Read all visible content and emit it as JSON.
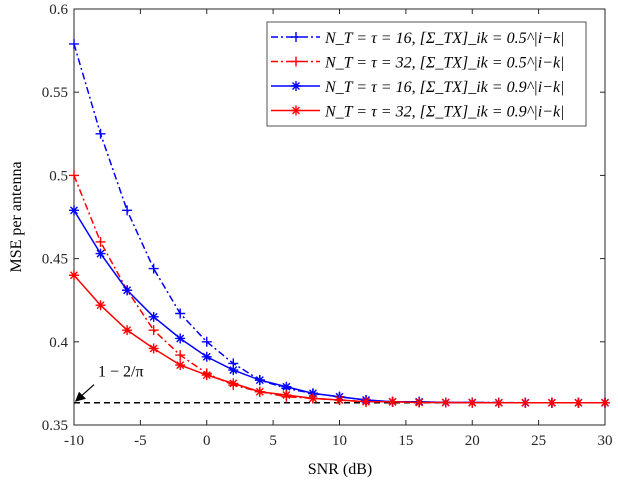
{
  "chart_data": {
    "type": "line",
    "title": "",
    "xlabel": "SNR (dB)",
    "ylabel": "MSE per antenna",
    "xlim": [
      -10,
      30
    ],
    "ylim": [
      0.35,
      0.6
    ],
    "xticks": [
      -10,
      -5,
      0,
      5,
      10,
      15,
      20,
      25,
      30
    ],
    "yticks": [
      0.35,
      0.4,
      0.45,
      0.5,
      0.55,
      0.6
    ],
    "xtick_labels": [
      "-10",
      "-5",
      "0",
      "5",
      "10",
      "15",
      "20",
      "25",
      "30"
    ],
    "ytick_labels": [
      "0.35",
      "0.4",
      "0.45",
      "0.5",
      "0.55",
      "0.6"
    ],
    "grid": false,
    "legend_position": "top-right",
    "x": [
      -10,
      -8,
      -6,
      -4,
      -2,
      0,
      2,
      4,
      6,
      8,
      10,
      12,
      14,
      16,
      18,
      20,
      22,
      24,
      26,
      28,
      30
    ],
    "series": [
      {
        "name": "N_T = τ = 16, [Σ_TX]_ik = 0.5^|i−k|",
        "color": "#0000ff",
        "style": "dashdot",
        "marker": "plus",
        "values": [
          0.579,
          0.525,
          0.479,
          0.444,
          0.417,
          0.4,
          0.387,
          0.377,
          0.372,
          0.369,
          0.367,
          0.365,
          0.364,
          0.364,
          0.3635,
          0.3635,
          0.3635,
          0.3634,
          0.3634,
          0.3634,
          0.3634
        ]
      },
      {
        "name": "N_T = τ = 32, [Σ_TX]_ik = 0.5^|i−k|",
        "color": "#ff0000",
        "style": "dashdot",
        "marker": "plus",
        "values": [
          0.5,
          0.46,
          0.431,
          0.407,
          0.392,
          0.381,
          0.374,
          0.37,
          0.367,
          0.366,
          0.365,
          0.364,
          0.364,
          0.3635,
          0.3635,
          0.3634,
          0.3634,
          0.3634,
          0.3634,
          0.3634,
          0.3634
        ]
      },
      {
        "name": "N_T = τ = 16, [Σ_TX]_ik = 0.9^|i−k|",
        "color": "#0000ff",
        "style": "solid",
        "marker": "asterisk",
        "values": [
          0.479,
          0.453,
          0.431,
          0.415,
          0.402,
          0.391,
          0.383,
          0.377,
          0.373,
          0.369,
          0.367,
          0.365,
          0.364,
          0.364,
          0.3635,
          0.3635,
          0.3634,
          0.3634,
          0.3634,
          0.3634,
          0.3634
        ]
      },
      {
        "name": "N_T = τ = 32, [Σ_TX]_ik = 0.9^|i−k|",
        "color": "#ff0000",
        "style": "solid",
        "marker": "asterisk",
        "values": [
          0.44,
          0.422,
          0.407,
          0.396,
          0.386,
          0.38,
          0.375,
          0.37,
          0.368,
          0.366,
          0.365,
          0.364,
          0.364,
          0.3635,
          0.3635,
          0.3634,
          0.3634,
          0.3634,
          0.3634,
          0.3634,
          0.3634
        ]
      }
    ],
    "reference_line": {
      "value": 0.3634,
      "label": "1 − 2/π",
      "color": "#000000",
      "style": "dashed"
    }
  }
}
